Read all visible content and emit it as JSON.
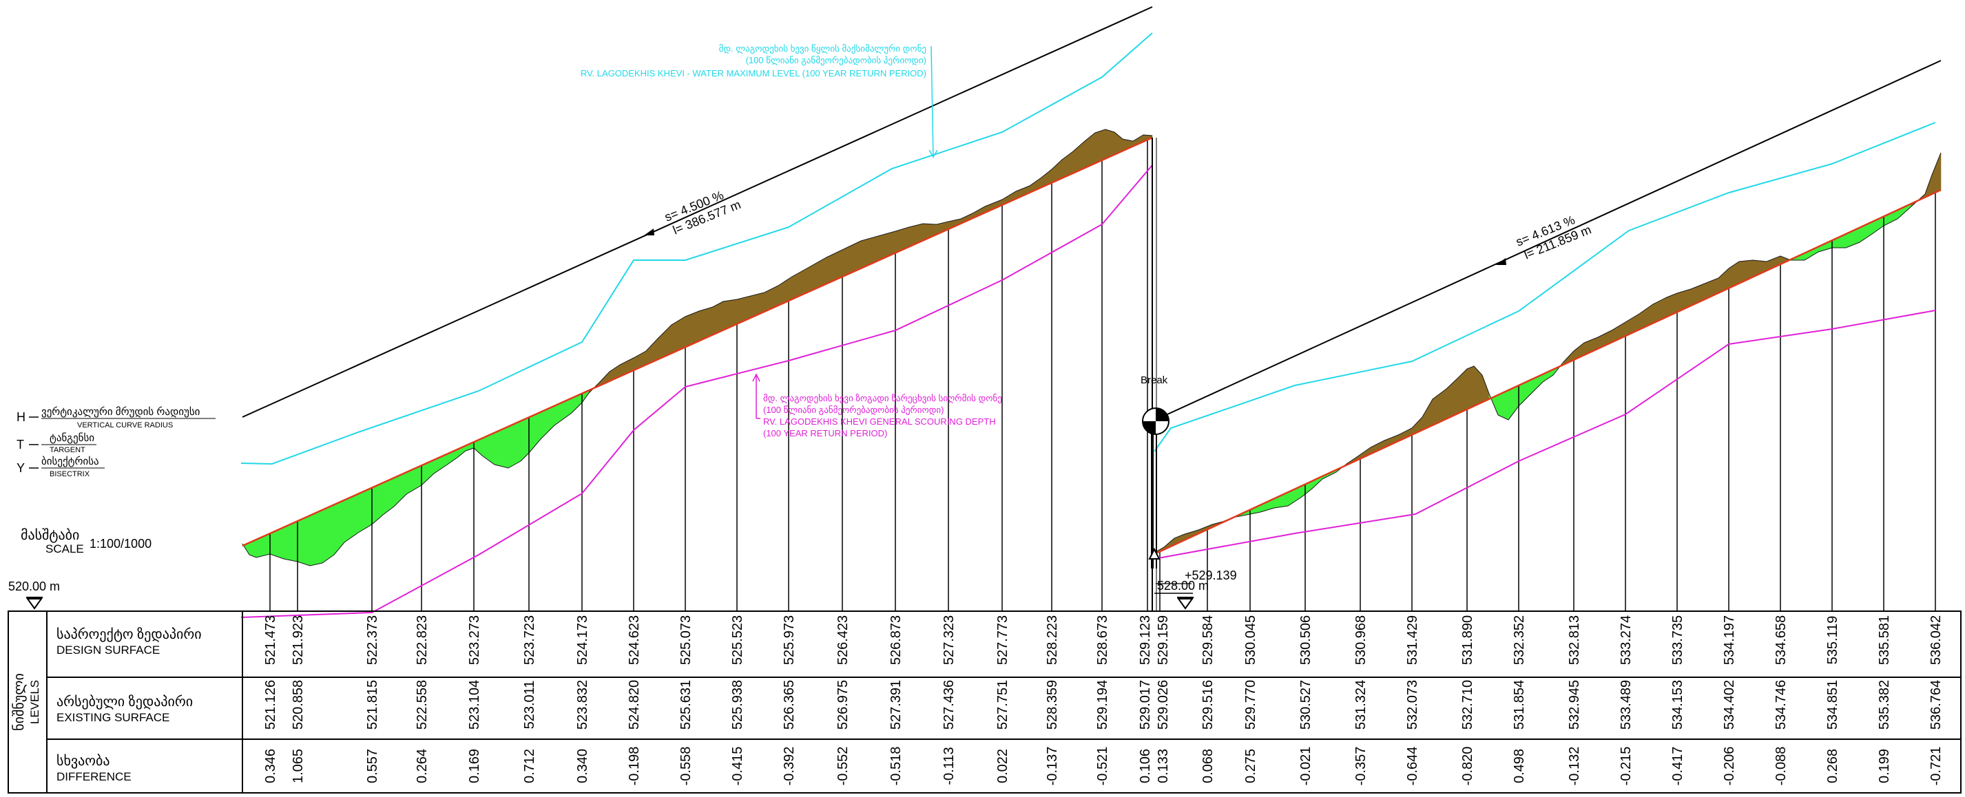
{
  "legend": {
    "h_geo": "ვერტიკალური მრუდის რადიუსი",
    "h_en": "VERTICAL CURVE RADIUS",
    "t_geo": "ტანგენსი",
    "t_en": "TARGENT",
    "y_geo": "ბისექტრისა",
    "y_en": "BISECTRIX",
    "h_letter": "H",
    "t_letter": "T",
    "y_letter": "Y",
    "scale_geo": "მასშტაბი",
    "scale_en": "SCALE",
    "scale_value": "1:100/1000"
  },
  "datum_left": "520.00 m",
  "datum_right": "528.00 m",
  "break_label": "Break",
  "break_level": "+529.139",
  "slope_left": {
    "s": "s= 4.500 %",
    "l": "l= 386.577 m"
  },
  "slope_right": {
    "s": "s= 4.613 %",
    "l": "l= 211.859 m"
  },
  "note_water": [
    "მდ. ლაგოდეხის ხევი წყლის მაქსიმალური დონე",
    "(100 წლიანი განმეორებადობის პერიოდი)",
    "RV. LAGODEKHIS KHEVI - WATER MAXIMUM LEVEL (100 YEAR RETURN PERIOD)"
  ],
  "note_scour": [
    "მდ. ლაგოდეხის ხევი ზოგადი წარეცხვის სიღრმის დონე",
    "(100 წლიანი განმეორებადობის პერიოდი)",
    "RV. LAGODEKHIS KHEVI GENERAL SCOURING DEPTH",
    "(100 YEAR RETURN PERIOD)"
  ],
  "table": {
    "group_geo": "ნიშნული",
    "group_en": "LEVELS",
    "rows": [
      {
        "geo": "საპროექტო ზედაპირი",
        "en": "DESIGN SURFACE"
      },
      {
        "geo": "არსებული ზედაპირი",
        "en": "EXISTING SURFACE"
      },
      {
        "geo": "სხვაობა",
        "en": "DIFFERENCE"
      }
    ]
  },
  "columns": {
    "design": [
      "521.473",
      "521.923",
      "522.373",
      "522.823",
      "523.273",
      "523.723",
      "524.173",
      "524.623",
      "525.073",
      "525.523",
      "525.973",
      "526.423",
      "526.873",
      "527.323",
      "527.773",
      "528.223",
      "528.673",
      "529.123",
      "529.159",
      "529.584",
      "530.045",
      "530.506",
      "530.968",
      "531.429",
      "531.890",
      "532.352",
      "532.813",
      "533.274",
      "533.735",
      "534.197",
      "534.658",
      "535.119",
      "535.581",
      "536.042"
    ],
    "existing": [
      "521.126",
      "520.858",
      "521.815",
      "522.558",
      "523.104",
      "523.011",
      "523.832",
      "524.820",
      "525.631",
      "525.938",
      "526.365",
      "526.975",
      "527.391",
      "527.436",
      "527.751",
      "528.359",
      "529.194",
      "529.017",
      "529.026",
      "529.516",
      "529.770",
      "530.527",
      "531.324",
      "532.073",
      "532.710",
      "531.854",
      "532.945",
      "533.489",
      "534.153",
      "534.402",
      "534.746",
      "534.851",
      "535.382",
      "536.764"
    ],
    "difference": [
      "0.346",
      "1.065",
      "0.557",
      "0.264",
      "0.169",
      "0.712",
      "0.340",
      "-0.198",
      "-0.558",
      "-0.415",
      "-0.392",
      "-0.552",
      "-0.518",
      "-0.113",
      "0.022",
      "-0.137",
      "-0.521",
      "0.106",
      "0.133",
      "0.068",
      "0.275",
      "-0.021",
      "-0.357",
      "-0.644",
      "-0.820",
      "0.498",
      "-0.132",
      "-0.215",
      "-0.417",
      "-0.206",
      "-0.088",
      "0.268",
      "0.199",
      "-0.721"
    ]
  },
  "colors": {
    "water": "#22d8e8",
    "scour": "#e020d8",
    "design": "#e03a1a",
    "fill": "#3df03a",
    "cut": "#8a6a22"
  }
}
